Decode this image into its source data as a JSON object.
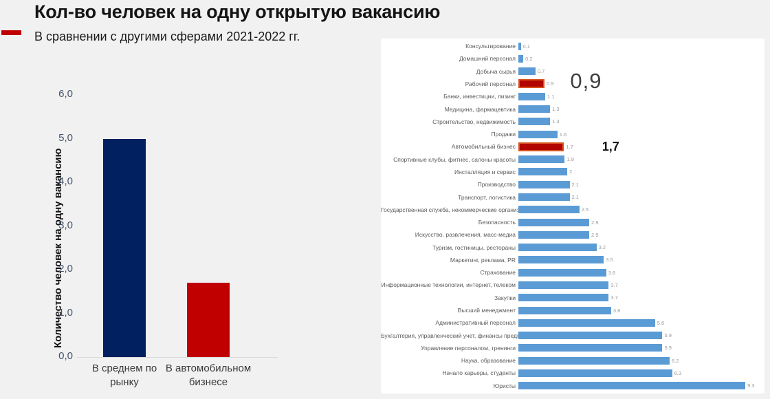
{
  "header": {
    "title": "Кол-во человек на одну открытую вакансию",
    "subtitle": "В сравнении с другими сферами 2021-2022 гг."
  },
  "colors": {
    "accent_dash": "#c00000",
    "navy_bar": "#002060",
    "red_bar": "#c00000",
    "blue_bar": "#5b9bd5",
    "highlight_fill": "#b20500",
    "highlight_border": "#d7531f",
    "page_background": "#f1f1f1",
    "panel_background": "#ffffff"
  },
  "chart_data": [
    {
      "type": "bar",
      "orientation": "vertical",
      "title": "",
      "xlabel": "",
      "ylabel": "Количество человек на одну вакансию",
      "categories": [
        "В среднем по рынку",
        "В автомобильном бизнесе"
      ],
      "values": [
        5.0,
        1.7
      ],
      "bar_colors": [
        "#002060",
        "#c00000"
      ],
      "yticks": [
        "0,0",
        "1,0",
        "2,0",
        "3,0",
        "4,0",
        "5,0",
        "6,0"
      ],
      "ylim": [
        0,
        6
      ],
      "grid": false,
      "legend": false
    },
    {
      "type": "bar",
      "orientation": "horizontal",
      "title": "",
      "xlabel": "",
      "ylabel": "",
      "categories": [
        "Консультирование",
        "Домашний персонал",
        "Добыча сырья",
        "Рабочий персонал",
        "Банки, инвестиции, лизинг",
        "Медицина, фармацевтика",
        "Строительство, недвижимость",
        "Продажи",
        "Автомобильный бизнес",
        "Спортивные клубы, фитнес, салоны красоты",
        "Инсталляция и сервис",
        "Производство",
        "Транспорт, логистика",
        "Государственная служба, некоммерческие организации",
        "Безопасность",
        "Искусство, развлечения, масс-медиа",
        "Туризм, гостиницы, рестораны",
        "Маркетинг, реклама, PR",
        "Страхование",
        "Информационные технологии, интернет, телеком",
        "Закупки",
        "Высший менеджмент",
        "Административный персонал",
        "Бухгалтерия, управленческий учет, финансы предприятия",
        "Управление персоналом, тренинги",
        "Наука, образование",
        "Начало карьеры, студенты",
        "Юристы"
      ],
      "values": [
        0.1,
        0.2,
        0.7,
        0.9,
        1.1,
        1.3,
        1.3,
        1.6,
        1.7,
        1.9,
        2,
        2.1,
        2.1,
        2.5,
        2.9,
        2.9,
        3.2,
        3.5,
        3.6,
        3.7,
        3.7,
        3.8,
        5.6,
        5.9,
        5.9,
        6.2,
        6.3,
        9.3
      ],
      "value_labels": [
        "0.1",
        "0.2",
        "0.7",
        "0.9",
        "1.1",
        "1.3",
        "1.3",
        "1.6",
        "1.7",
        "1.9",
        "2",
        "2.1",
        "2.1",
        "2.5",
        "2.9",
        "2.9",
        "3.2",
        "3.5",
        "3.6",
        "3.7",
        "3.7",
        "3.8",
        "5.6",
        "5.9",
        "5.9",
        "6.2",
        "6.3",
        "9.3"
      ],
      "highlighted_indices": [
        3,
        8
      ],
      "annotations": [
        {
          "index": 3,
          "text": "0,9",
          "emphasis": "large"
        },
        {
          "index": 8,
          "text": "1,7",
          "emphasis": "small"
        }
      ],
      "xlim": [
        0,
        9.3
      ],
      "grid": false,
      "legend": false
    }
  ]
}
